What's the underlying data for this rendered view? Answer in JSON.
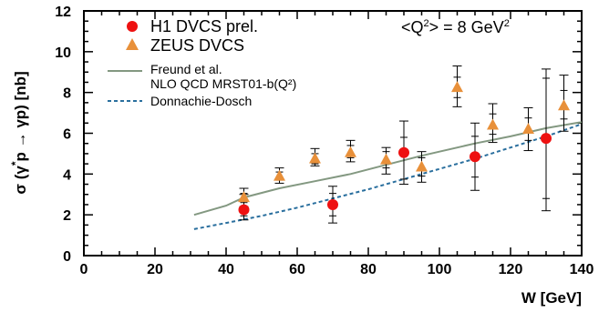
{
  "chart_data": {
    "type": "scatter",
    "xlabel": "W [GeV]",
    "ylabel_parts": [
      "σ (γ",
      "*",
      "p → γp)  [nb]"
    ],
    "xlim": [
      0,
      140
    ],
    "ylim": [
      0,
      12
    ],
    "xticks": [
      0,
      20,
      40,
      60,
      80,
      100,
      120,
      140
    ],
    "yticks": [
      0,
      2,
      4,
      6,
      8,
      10,
      12
    ],
    "grid": false,
    "legend_position": "top-left",
    "annotation": {
      "text_parts": [
        "<Q",
        "2",
        "> = 8 GeV",
        "2"
      ]
    },
    "series": [
      {
        "name": "H1 DVCS prel.",
        "kind": "points",
        "marker": "circle",
        "color": "#ee1111",
        "points": [
          {
            "x": 45,
            "y": 2.25,
            "err_lo": 0.5,
            "err_hi": 0.75,
            "inner_lo": 0.3,
            "inner_hi": 0.45
          },
          {
            "x": 70,
            "y": 2.5,
            "err_lo": 0.9,
            "err_hi": 0.9,
            "inner_lo": 0.55,
            "inner_hi": 0.55
          },
          {
            "x": 90,
            "y": 5.05,
            "err_lo": 1.55,
            "err_hi": 1.55,
            "inner_lo": 1.3,
            "inner_hi": 0.75
          },
          {
            "x": 110,
            "y": 4.85,
            "err_lo": 1.65,
            "err_hi": 1.65,
            "inner_lo": 1.0,
            "inner_hi": 1.0
          },
          {
            "x": 130,
            "y": 5.75,
            "err_lo": 3.55,
            "err_hi": 3.4,
            "inner_lo": 2.95,
            "inner_hi": 2.95
          }
        ]
      },
      {
        "name": "ZEUS DVCS",
        "kind": "points",
        "marker": "triangle",
        "color": "#e8903a",
        "points": [
          {
            "x": 45,
            "y": 2.85,
            "err_lo": 0.45,
            "err_hi": 0.45,
            "inner_lo": 0.25,
            "inner_hi": 0.2
          },
          {
            "x": 55,
            "y": 3.9,
            "err_lo": 0.35,
            "err_hi": 0.4,
            "inner_lo": 0.2,
            "inner_hi": 0.2
          },
          {
            "x": 65,
            "y": 4.75,
            "err_lo": 0.35,
            "err_hi": 0.5,
            "inner_lo": 0.25,
            "inner_hi": 0.25
          },
          {
            "x": 75,
            "y": 5.05,
            "err_lo": 0.45,
            "err_hi": 0.6,
            "inner_lo": 0.25,
            "inner_hi": 0.35
          },
          {
            "x": 85,
            "y": 4.7,
            "err_lo": 0.7,
            "err_hi": 0.6,
            "inner_lo": 0.4,
            "inner_hi": 0.4
          },
          {
            "x": 95,
            "y": 4.35,
            "err_lo": 0.75,
            "err_hi": 0.75,
            "inner_lo": 0.45,
            "inner_hi": 0.45
          },
          {
            "x": 105,
            "y": 8.25,
            "err_lo": 0.95,
            "err_hi": 1.05,
            "inner_lo": 0.5,
            "inner_hi": 0.5
          },
          {
            "x": 115,
            "y": 6.4,
            "err_lo": 0.85,
            "err_hi": 1.05,
            "inner_lo": 0.45,
            "inner_hi": 0.55
          },
          {
            "x": 125,
            "y": 6.2,
            "err_lo": 1.05,
            "err_hi": 1.05,
            "inner_lo": 0.55,
            "inner_hi": 0.55
          },
          {
            "x": 135,
            "y": 7.35,
            "err_lo": 1.25,
            "err_hi": 1.5,
            "inner_lo": 0.65,
            "inner_hi": 0.75
          }
        ]
      },
      {
        "name_lines": [
          "Freund et al.",
          "NLO QCD MRST01-b(Q²)"
        ],
        "kind": "line",
        "style": "solid",
        "color": "#839881",
        "x": [
          31,
          40,
          45,
          55,
          65,
          75,
          85,
          95,
          100,
          110,
          120,
          130,
          140
        ],
        "y": [
          2.0,
          2.45,
          2.85,
          3.3,
          3.65,
          4.0,
          4.45,
          4.9,
          5.1,
          5.5,
          5.85,
          6.25,
          6.55
        ]
      },
      {
        "name": "Donnachie-Dosch",
        "kind": "line",
        "style": "dashed",
        "color": "#2a6f9e",
        "x": [
          31,
          40,
          50,
          60,
          70,
          80,
          90,
          100,
          110,
          120,
          130,
          140
        ],
        "y": [
          1.3,
          1.6,
          1.95,
          2.35,
          2.8,
          3.25,
          3.75,
          4.25,
          4.75,
          5.3,
          5.85,
          6.45
        ]
      }
    ]
  }
}
